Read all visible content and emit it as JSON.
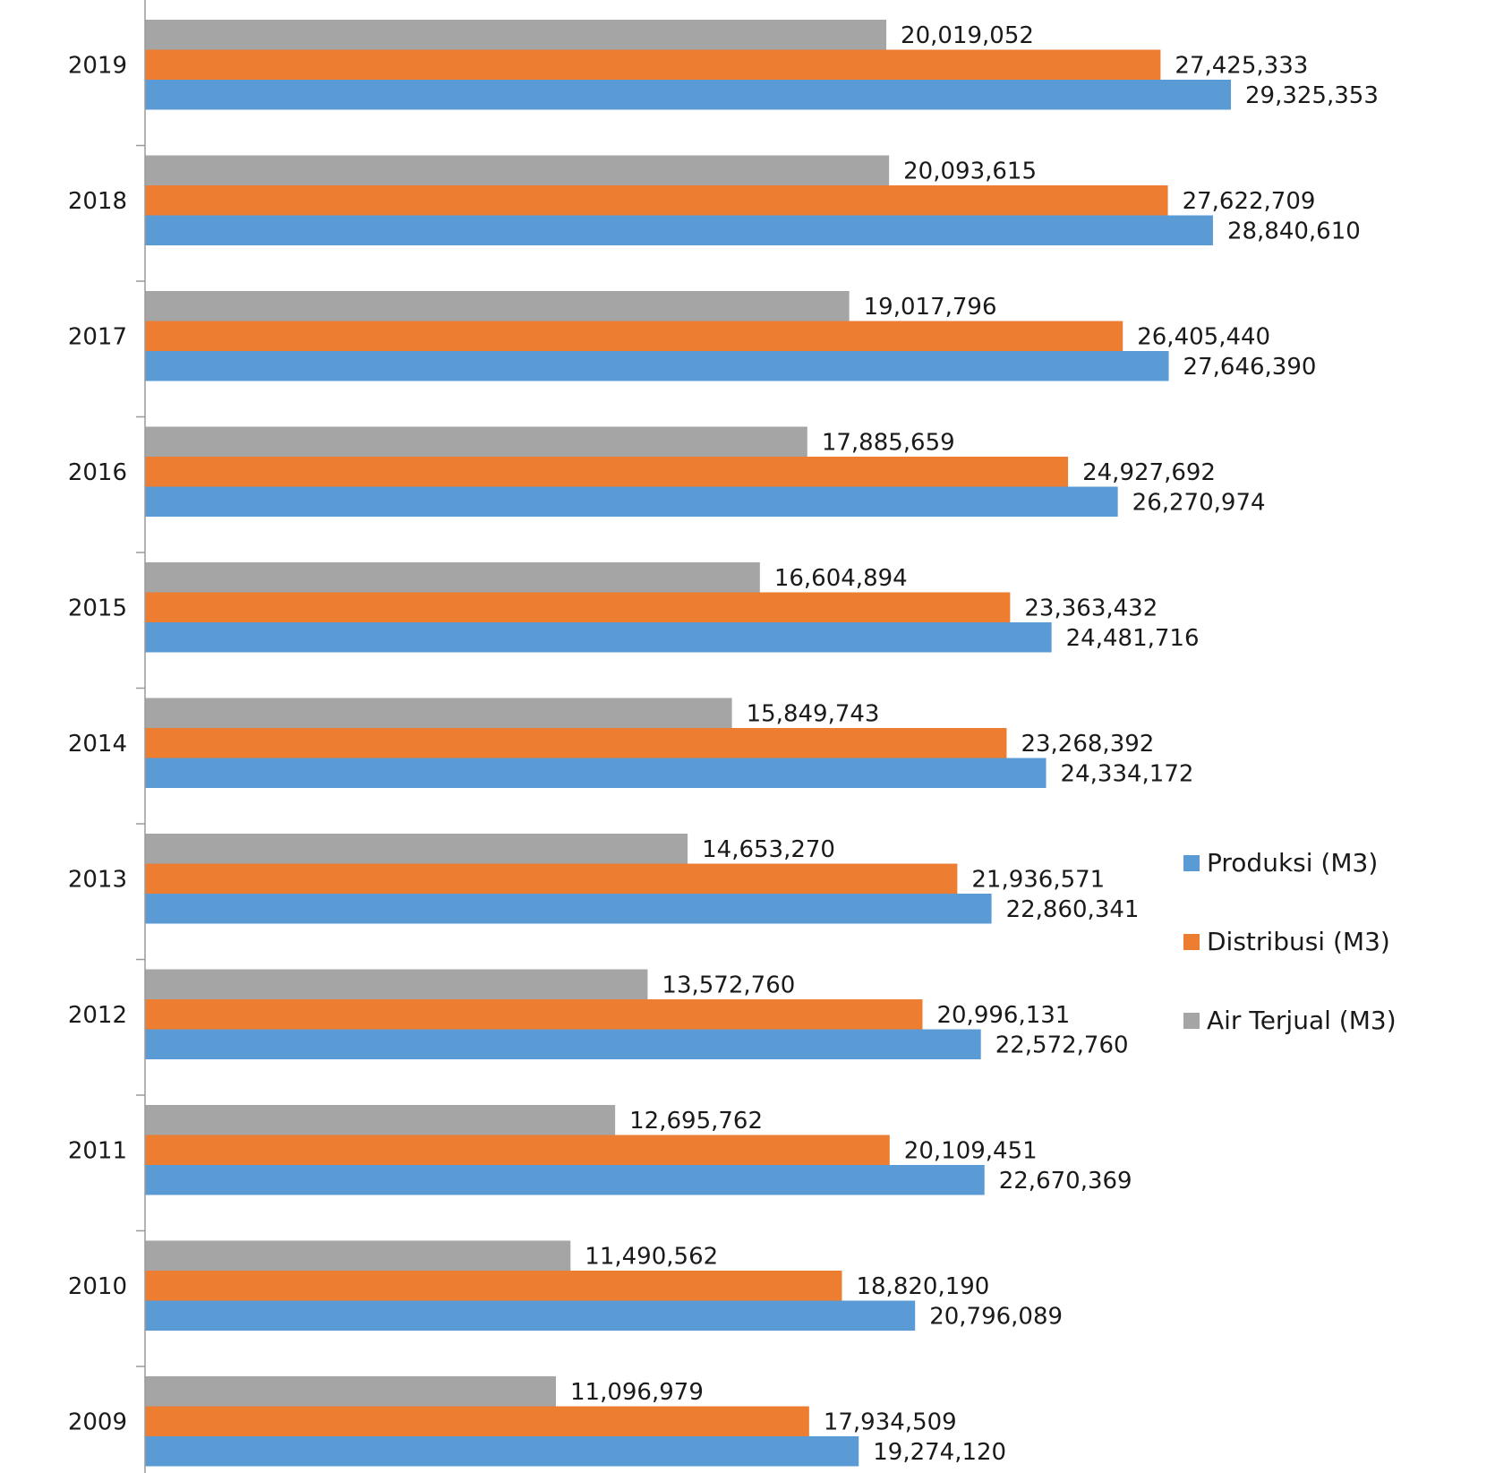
{
  "chart_data": {
    "type": "bar",
    "orientation": "horizontal",
    "title": "",
    "xlabel": "",
    "ylabel": "",
    "categories": [
      "2019",
      "2018",
      "2017",
      "2016",
      "2015",
      "2014",
      "2013",
      "2012",
      "2011",
      "2010",
      "2009"
    ],
    "series": [
      {
        "name": "Air Terjual (M3)",
        "color": "#a5a5a5",
        "values": [
          20019052,
          20093615,
          19017796,
          17885659,
          16604894,
          15849743,
          14653270,
          13572760,
          12695762,
          11490562,
          11096979
        ],
        "labels": [
          "20,019,052",
          "20,093,615",
          "19,017,796",
          "17,885,659",
          "16,604,894",
          "15,849,743",
          "14,653,270",
          "13,572,760",
          "12,695,762",
          "11,490,562",
          "11,096,979"
        ]
      },
      {
        "name": "Distribusi (M3)",
        "color": "#ed7d31",
        "values": [
          27425333,
          27622709,
          26405440,
          24927692,
          23363432,
          23268392,
          21936571,
          20996131,
          20109451,
          18820190,
          17934509
        ],
        "labels": [
          "27,425,333",
          "27,622,709",
          "26,405,440",
          "24,927,692",
          "23,363,432",
          "23,268,392",
          "21,936,571",
          "20,996,131",
          "20,109,451",
          "18,820,190",
          "17,934,509"
        ]
      },
      {
        "name": "Produksi (M3)",
        "color": "#5b9bd5",
        "values": [
          29325353,
          28840610,
          27646390,
          26270974,
          24481716,
          24334172,
          22860341,
          22572760,
          22670369,
          20796089,
          19274120
        ],
        "labels": [
          "29,325,353",
          "28,840,610",
          "27,646,390",
          "26,270,974",
          "24,481,716",
          "24,334,172",
          "22,860,341",
          "22,572,760",
          "22,670,369",
          "20,796,089",
          "19,274,120"
        ]
      }
    ],
    "legend": {
      "position": "right",
      "entries": [
        "Produksi (M3)",
        "Distribusi (M3)",
        "Air Terjual (M3)"
      ]
    },
    "xlim": [
      0,
      40000000
    ],
    "grid": false
  }
}
